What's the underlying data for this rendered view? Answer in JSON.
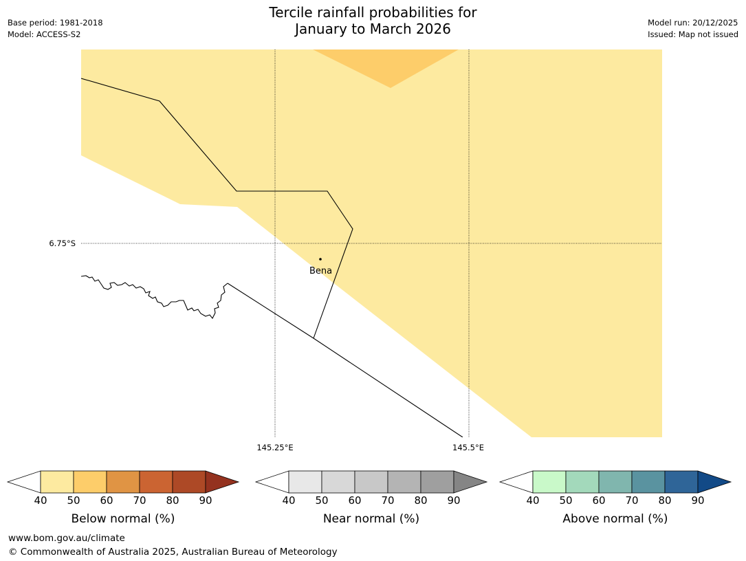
{
  "header": {
    "title_line1": "Tercile rainfall probabilities for",
    "title_line2": "January to March 2026",
    "base_period": "Base period: 1981-2018",
    "model": "Model: ACCESS-S2",
    "model_run": "Model run: 20/12/2025",
    "issued": "Issued: Map not issued"
  },
  "map": {
    "latitude_label": "6.75°S",
    "longitude_labels": [
      "145.25°E",
      "145.5°E"
    ],
    "place_name": "Bena",
    "fill_colors": {
      "below_40_50": "#fdeaa0",
      "below_50_60": "#fdcd6a"
    }
  },
  "colorbars": [
    {
      "title": "Below normal (%)",
      "ticks": [
        "40",
        "50",
        "60",
        "70",
        "80",
        "90"
      ],
      "colors": [
        "#ffffff",
        "#fdeaa0",
        "#fdcd6a",
        "#e09444",
        "#cb6432",
        "#ad4926",
        "#94321f"
      ]
    },
    {
      "title": "Near normal (%)",
      "ticks": [
        "40",
        "50",
        "60",
        "70",
        "80",
        "90"
      ],
      "colors": [
        "#ffffff",
        "#e8e8e8",
        "#d8d8d8",
        "#c8c8c8",
        "#b4b4b4",
        "#9f9f9f",
        "#858585"
      ]
    },
    {
      "title": "Above normal (%)",
      "ticks": [
        "40",
        "50",
        "60",
        "70",
        "80",
        "90"
      ],
      "colors": [
        "#ffffff",
        "#c9f9c9",
        "#a3d9bb",
        "#80b6ae",
        "#5a93a0",
        "#2f6598",
        "#124a87"
      ]
    }
  ],
  "footer": {
    "url": "www.bom.gov.au/climate",
    "copyright": "© Commonwealth of Australia 2025, Australian Bureau of Meteorology"
  }
}
